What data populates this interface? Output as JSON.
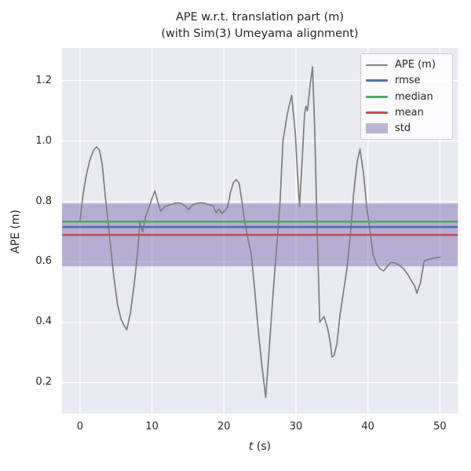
{
  "title": {
    "line1": "APE w.r.t. translation part (m)",
    "line2": "(with Sim(3) Umeyama alignment)"
  },
  "axes": {
    "xlabel_var": "t",
    "xlabel_unit": " (s)",
    "ylabel": "APE (m)",
    "xlim": [
      -2.5,
      52.5
    ],
    "ylim": [
      0.098,
      1.308
    ],
    "xticks": [
      0,
      10,
      20,
      30,
      40,
      50
    ],
    "yticks": [
      0.2,
      0.4,
      0.6,
      0.8,
      1.0,
      1.2
    ]
  },
  "colors": {
    "figure_bg": "#ffffff",
    "axes_bg": "#eaeaf2",
    "grid": "#ffffff",
    "text": "#262626"
  },
  "legend": {
    "items": [
      {
        "label": "APE (m)",
        "color": "#7f7f7f",
        "kind": "line"
      },
      {
        "label": "rmse",
        "color": "#4c72b0",
        "kind": "line"
      },
      {
        "label": "median",
        "color": "#55a868",
        "kind": "line"
      },
      {
        "label": "mean",
        "color": "#c44e52",
        "kind": "line"
      },
      {
        "label": "std",
        "color": "#8172b2",
        "kind": "patch"
      }
    ]
  },
  "chart_data": {
    "type": "line",
    "title": "APE w.r.t. translation part (m) (with Sim(3) Umeyama alignment)",
    "xlabel": "t (s)",
    "ylabel": "APE (m)",
    "xlim": [
      -2.5,
      52.5
    ],
    "ylim": [
      0.098,
      1.308
    ],
    "grid": true,
    "legend_position": "upper right",
    "stats": {
      "rmse": 0.715,
      "median": 0.733,
      "mean": 0.689,
      "std": 0.104
    },
    "series": [
      {
        "name": "APE (m)",
        "type": "line",
        "color": "#7f7f7f",
        "points": [
          [
            0,
            0.735
          ],
          [
            0.4,
            0.82
          ],
          [
            0.9,
            0.89
          ],
          [
            1.4,
            0.94
          ],
          [
            1.9,
            0.97
          ],
          [
            2.3,
            0.98
          ],
          [
            2.7,
            0.97
          ],
          [
            3.1,
            0.92
          ],
          [
            3.5,
            0.82
          ],
          [
            3.9,
            0.73
          ],
          [
            4.3,
            0.64
          ],
          [
            4.7,
            0.55
          ],
          [
            5.2,
            0.46
          ],
          [
            5.7,
            0.41
          ],
          [
            6.1,
            0.39
          ],
          [
            6.5,
            0.375
          ],
          [
            7.0,
            0.43
          ],
          [
            7.5,
            0.52
          ],
          [
            8.0,
            0.63
          ],
          [
            8.3,
            0.732
          ],
          [
            8.7,
            0.698
          ],
          [
            9.1,
            0.75
          ],
          [
            9.6,
            0.78
          ],
          [
            10.0,
            0.81
          ],
          [
            10.4,
            0.835
          ],
          [
            10.8,
            0.8
          ],
          [
            11.2,
            0.767
          ],
          [
            11.8,
            0.783
          ],
          [
            12.4,
            0.788
          ],
          [
            13.0,
            0.792
          ],
          [
            13.6,
            0.795
          ],
          [
            14.2,
            0.792
          ],
          [
            14.7,
            0.782
          ],
          [
            15.1,
            0.773
          ],
          [
            15.6,
            0.788
          ],
          [
            16.2,
            0.793
          ],
          [
            16.8,
            0.795
          ],
          [
            17.4,
            0.793
          ],
          [
            18.0,
            0.788
          ],
          [
            18.5,
            0.785
          ],
          [
            18.9,
            0.762
          ],
          [
            19.3,
            0.775
          ],
          [
            19.7,
            0.76
          ],
          [
            20.1,
            0.768
          ],
          [
            20.5,
            0.78
          ],
          [
            20.9,
            0.83
          ],
          [
            21.3,
            0.862
          ],
          [
            21.7,
            0.872
          ],
          [
            22.1,
            0.86
          ],
          [
            22.5,
            0.8
          ],
          [
            22.8,
            0.744
          ],
          [
            23.3,
            0.68
          ],
          [
            23.8,
            0.625
          ],
          [
            24.3,
            0.5
          ],
          [
            24.7,
            0.39
          ],
          [
            25.2,
            0.27
          ],
          [
            25.8,
            0.151
          ],
          [
            26.4,
            0.35
          ],
          [
            26.8,
            0.49
          ],
          [
            27.3,
            0.64
          ],
          [
            27.8,
            0.8
          ],
          [
            28.2,
            1.0
          ],
          [
            28.8,
            1.09
          ],
          [
            29.4,
            1.151
          ],
          [
            29.9,
            1.03
          ],
          [
            30.2,
            0.9
          ],
          [
            30.5,
            0.783
          ],
          [
            30.9,
            0.95
          ],
          [
            31.2,
            1.09
          ],
          [
            31.4,
            1.115
          ],
          [
            31.6,
            1.1
          ],
          [
            32.0,
            1.19
          ],
          [
            32.3,
            1.245
          ],
          [
            32.6,
            1.05
          ],
          [
            32.9,
            0.75
          ],
          [
            33.3,
            0.4
          ],
          [
            33.9,
            0.419
          ],
          [
            34.4,
            0.38
          ],
          [
            34.8,
            0.33
          ],
          [
            35.0,
            0.285
          ],
          [
            35.3,
            0.29
          ],
          [
            35.7,
            0.33
          ],
          [
            36.1,
            0.42
          ],
          [
            36.6,
            0.5
          ],
          [
            37.1,
            0.58
          ],
          [
            37.6,
            0.7
          ],
          [
            38.0,
            0.82
          ],
          [
            38.5,
            0.93
          ],
          [
            38.9,
            0.973
          ],
          [
            39.4,
            0.89
          ],
          [
            39.8,
            0.788
          ],
          [
            40.3,
            0.7
          ],
          [
            40.7,
            0.625
          ],
          [
            41.2,
            0.592
          ],
          [
            41.7,
            0.576
          ],
          [
            42.2,
            0.57
          ],
          [
            42.7,
            0.585
          ],
          [
            43.2,
            0.598
          ],
          [
            43.8,
            0.596
          ],
          [
            44.4,
            0.588
          ],
          [
            45.0,
            0.576
          ],
          [
            45.6,
            0.556
          ],
          [
            46.1,
            0.535
          ],
          [
            46.5,
            0.52
          ],
          [
            46.8,
            0.496
          ],
          [
            47.3,
            0.53
          ],
          [
            47.8,
            0.602
          ],
          [
            48.4,
            0.608
          ],
          [
            49.0,
            0.612
          ],
          [
            49.5,
            0.613
          ],
          [
            50.0,
            0.615
          ]
        ]
      },
      {
        "name": "rmse",
        "type": "hline",
        "color": "#4c72b0",
        "value": 0.715
      },
      {
        "name": "median",
        "type": "hline",
        "color": "#55a868",
        "value": 0.733
      },
      {
        "name": "mean",
        "type": "hline",
        "color": "#c44e52",
        "value": 0.689
      },
      {
        "name": "std",
        "type": "hband",
        "color": "#8172b2",
        "range": [
          0.585,
          0.793
        ]
      }
    ]
  }
}
